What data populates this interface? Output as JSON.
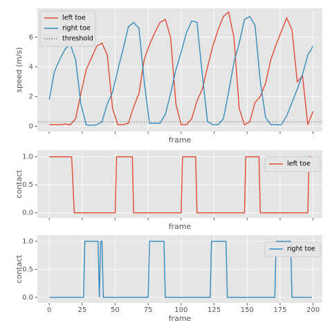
{
  "chart_data": [
    {
      "type": "line",
      "xlabel": "frame",
      "ylabel": "speed (m/s)",
      "x": [
        0,
        4,
        8,
        12,
        16,
        20,
        24,
        28,
        32,
        36,
        40,
        44,
        48,
        52,
        56,
        60,
        64,
        68,
        72,
        76,
        80,
        84,
        88,
        92,
        96,
        100,
        104,
        108,
        112,
        116,
        120,
        124,
        128,
        132,
        136,
        140,
        144,
        148,
        152,
        156,
        160,
        164,
        168,
        172,
        176,
        180,
        184,
        188,
        192,
        196,
        200
      ],
      "series": [
        {
          "name": "left toe",
          "color": "#E24A33",
          "values": [
            0.1,
            0.1,
            0.1,
            0.15,
            0.1,
            0.5,
            2.2,
            3.8,
            4.6,
            5.4,
            5.6,
            4.8,
            1.2,
            0.1,
            0.1,
            0.2,
            1.3,
            2.2,
            4.5,
            5.5,
            6.3,
            7.0,
            7.2,
            6.0,
            1.5,
            0.1,
            0.1,
            0.5,
            1.7,
            2.5,
            4.0,
            5.4,
            6.5,
            7.4,
            7.7,
            6.0,
            1.2,
            0.1,
            0.3,
            1.6,
            2.0,
            2.9,
            4.5,
            5.5,
            6.4,
            7.3,
            6.5,
            3.0,
            3.4,
            0.1,
            1.0
          ]
        },
        {
          "name": "right toe",
          "color": "#348ABD",
          "values": [
            1.8,
            3.7,
            4.5,
            5.2,
            5.5,
            4.5,
            1.5,
            0.1,
            0.05,
            0.1,
            0.3,
            1.5,
            2.3,
            3.8,
            5.2,
            6.7,
            7.0,
            6.6,
            3.0,
            0.2,
            0.2,
            0.2,
            0.8,
            2.2,
            3.8,
            5.0,
            6.3,
            7.1,
            7.0,
            3.5,
            0.3,
            0.1,
            0.1,
            0.5,
            2.3,
            4.3,
            5.6,
            7.2,
            7.4,
            6.8,
            3.0,
            0.6,
            0.1,
            0.1,
            0.1,
            0.7,
            1.6,
            2.5,
            3.5,
            4.8,
            5.4
          ]
        }
      ],
      "threshold": {
        "name": "threshold",
        "value": 0.3,
        "color": "#888888"
      },
      "xlim": [
        -9,
        207
      ],
      "ylim": [
        -0.35,
        7.95
      ],
      "xticks": [
        0,
        25,
        50,
        75,
        100,
        125,
        150,
        175,
        200
      ],
      "xtick_labels": false,
      "yticks": [
        0,
        2,
        4,
        6
      ],
      "grid": true,
      "legend": "upper left"
    },
    {
      "type": "line",
      "xlabel": "frame",
      "ylabel": "contact",
      "x": [
        0,
        17,
        19,
        50,
        51,
        63,
        64,
        100,
        101,
        111,
        112,
        148,
        149,
        159,
        160,
        196,
        197,
        199
      ],
      "series": [
        {
          "name": "left toe",
          "color": "#E24A33",
          "values": [
            1,
            1,
            0,
            0,
            1,
            1,
            0,
            0,
            1,
            1,
            0,
            0,
            1,
            1,
            0,
            0,
            1,
            1
          ]
        }
      ],
      "xlim": [
        -9,
        207
      ],
      "ylim": [
        -0.09,
        1.12
      ],
      "xticks": [
        0,
        25,
        50,
        75,
        100,
        125,
        150,
        175,
        200
      ],
      "xtick_labels": false,
      "yticks": [
        {
          "value": 0,
          "label": "0.0"
        },
        {
          "value": 0.5,
          "label": "0.5"
        },
        {
          "value": 1,
          "label": "1.0"
        }
      ],
      "grid": true,
      "legend": "upper right"
    },
    {
      "type": "line",
      "xlabel": "frame",
      "ylabel": "contact",
      "x": [
        0,
        26,
        27,
        37,
        38,
        39,
        40,
        41,
        75,
        76,
        87,
        88,
        122,
        123,
        134,
        135,
        171,
        172,
        183,
        184,
        199
      ],
      "series": [
        {
          "name": "right toe",
          "color": "#348ABD",
          "values": [
            0,
            0,
            1,
            1,
            0,
            1,
            1,
            0,
            0,
            1,
            1,
            0,
            0,
            1,
            1,
            0,
            0,
            1,
            1,
            0,
            0
          ]
        }
      ],
      "xlim": [
        -9,
        207
      ],
      "ylim": [
        -0.1,
        1.11
      ],
      "xticks": [
        0,
        25,
        50,
        75,
        100,
        125,
        150,
        175,
        200
      ],
      "xtick_labels": true,
      "yticks": [
        {
          "value": 0,
          "label": "0.0"
        },
        {
          "value": 0.5,
          "label": "0.5"
        },
        {
          "value": 1,
          "label": "1.0"
        }
      ],
      "grid": true,
      "legend": "upper right"
    }
  ]
}
